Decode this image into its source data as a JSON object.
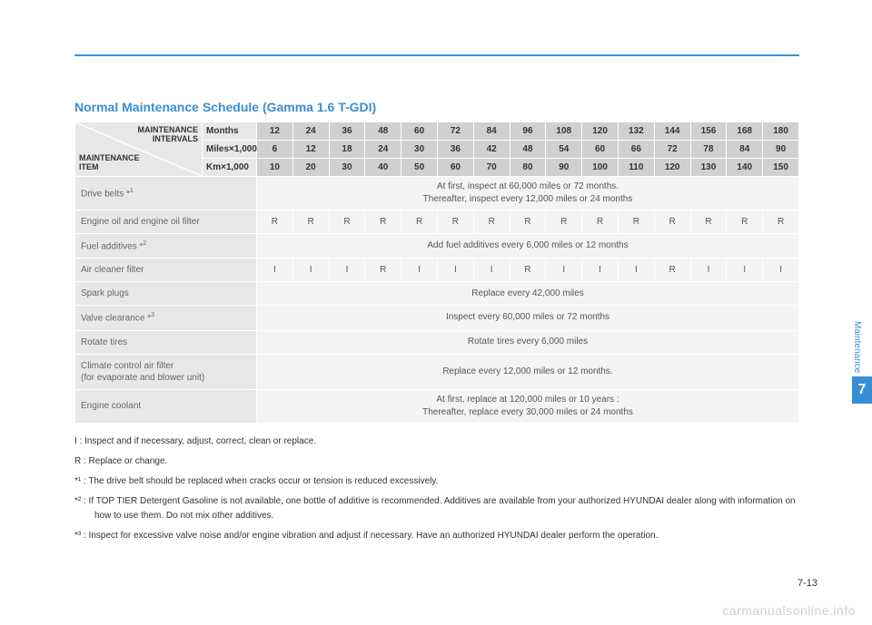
{
  "title": "Normal Maintenance Schedule (Gamma 1.6 T-GDI)",
  "corner": {
    "top": "MAINTENANCE\nINTERVALS",
    "bottom": "MAINTENANCE\nITEM"
  },
  "header_rows": [
    {
      "label": "Months",
      "values": [
        "12",
        "24",
        "36",
        "48",
        "60",
        "72",
        "84",
        "96",
        "108",
        "120",
        "132",
        "144",
        "156",
        "168",
        "180"
      ]
    },
    {
      "label": "Miles×1,000",
      "values": [
        "6",
        "12",
        "18",
        "24",
        "30",
        "36",
        "42",
        "48",
        "54",
        "60",
        "66",
        "72",
        "78",
        "84",
        "90"
      ]
    },
    {
      "label": "Km×1,000",
      "values": [
        "10",
        "20",
        "30",
        "40",
        "50",
        "60",
        "70",
        "80",
        "90",
        "100",
        "110",
        "120",
        "130",
        "140",
        "150"
      ]
    }
  ],
  "rows": [
    {
      "item": "Drive belts *",
      "sup": "1",
      "span_text": "At first, inspect at 60,000 miles or 72 months.\nThereafter, inspect every 12,000 miles or 24 months"
    },
    {
      "item": "Engine oil and engine oil filter",
      "cells": [
        "R",
        "R",
        "R",
        "R",
        "R",
        "R",
        "R",
        "R",
        "R",
        "R",
        "R",
        "R",
        "R",
        "R",
        "R"
      ]
    },
    {
      "item": "Fuel additives *",
      "sup": "2",
      "span_text": "Add fuel additives every 6,000 miles or 12 months"
    },
    {
      "item": "Air cleaner filter",
      "cells": [
        "I",
        "I",
        "I",
        "R",
        "I",
        "I",
        "I",
        "R",
        "I",
        "I",
        "I",
        "R",
        "I",
        "I",
        "I"
      ]
    },
    {
      "item": "Spark plugs",
      "span_text": "Replace every 42,000 miles"
    },
    {
      "item": "Valve clearance *",
      "sup": "3",
      "span_text": "Inspect every 60,000 miles or 72 months"
    },
    {
      "item": "Rotate tires",
      "span_text": "Rotate tires every 6,000 miles"
    },
    {
      "item": "Climate control air filter\n(for evaporate and blower unit)",
      "span_text": "Replace every 12,000 miles or 12 months."
    },
    {
      "item": "Engine coolant",
      "span_text": "At first, replace at 120,000 miles or 10 years :\nThereafter, replace every 30,000 miles or 24 months"
    }
  ],
  "notes": [
    "I   : Inspect and if necessary, adjust, correct, clean or replace.",
    "R : Replace or change.",
    "*¹ : The drive belt should be replaced when cracks occur or tension is reduced excessively.",
    "*² : If TOP TIER Detergent Gasoline is not available, one bottle of additive is recommended. Additives are available from your authorized HYUNDAI dealer along with information on how to use them. Do not mix other additives.",
    "*³ : Inspect for excessive valve noise and/or engine vibration and adjust if necessary. Have an authorized HYUNDAI dealer perform the operation."
  ],
  "side": {
    "label": "Maintenance",
    "num": "7"
  },
  "page_num": "7-13",
  "watermark": "carmanualsonline.info",
  "colors": {
    "accent": "#3a8fd4",
    "hdr_bg": "#e8e8e8",
    "hdr_val_bg": "#d0d0d0",
    "data_bg": "#f4f4f4"
  }
}
